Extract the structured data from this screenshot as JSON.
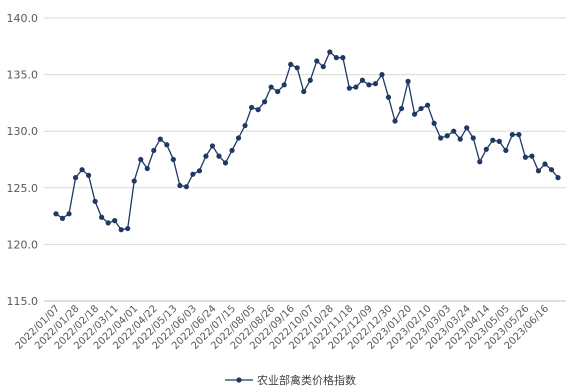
{
  "chart_data": {
    "type": "line",
    "title": "",
    "xlabel": "",
    "ylabel": "",
    "ylim": [
      115.0,
      140.0
    ],
    "y_ticks": [
      "115.0",
      "120.0",
      "125.0",
      "130.0",
      "135.0",
      "140.0"
    ],
    "y_tick_values": [
      115,
      120,
      125,
      130,
      135,
      140
    ],
    "x_tick_labels": [
      "2022/01/07",
      "2022/01/28",
      "2022/02/18",
      "2022/03/11",
      "2022/04/01",
      "2022/04/22",
      "2022/05/13",
      "2022/06/03",
      "2022/06/24",
      "2022/07/15",
      "2022/08/05",
      "2022/08/26",
      "2022/09/16",
      "2022/10/07",
      "2022/10/28",
      "2022/11/18",
      "2022/12/09",
      "2022/12/30",
      "2023/01/20",
      "2023/02/10",
      "2023/03/03",
      "2023/03/24",
      "2023/04/14",
      "2023/05/05",
      "2023/05/26",
      "2023/06/16"
    ],
    "grid": "horizontal",
    "legend_position": "bottom",
    "series": [
      {
        "name": "农业部禽类价格指数",
        "color": "#1F3864",
        "values": [
          122.7,
          122.3,
          122.7,
          125.9,
          126.6,
          126.1,
          123.8,
          122.4,
          121.9,
          122.1,
          121.3,
          121.4,
          125.6,
          127.5,
          126.7,
          128.3,
          129.3,
          128.8,
          127.5,
          125.2,
          125.1,
          126.2,
          126.5,
          127.8,
          128.7,
          127.8,
          127.2,
          128.3,
          129.4,
          130.5,
          132.1,
          131.9,
          132.6,
          133.9,
          133.5,
          134.1,
          135.9,
          135.6,
          133.5,
          134.5,
          136.2,
          135.7,
          137.0,
          136.5,
          136.5,
          133.8,
          133.9,
          134.5,
          134.1,
          134.2,
          135.0,
          133.0,
          130.9,
          132.0,
          134.4,
          131.5,
          132.0,
          132.3,
          130.7,
          129.4,
          129.6,
          130.0,
          129.3,
          130.3,
          129.4,
          127.3,
          128.4,
          129.2,
          129.1,
          128.3,
          129.7,
          129.7,
          127.7,
          127.8,
          126.5,
          127.1,
          126.6,
          125.9
        ]
      }
    ]
  }
}
